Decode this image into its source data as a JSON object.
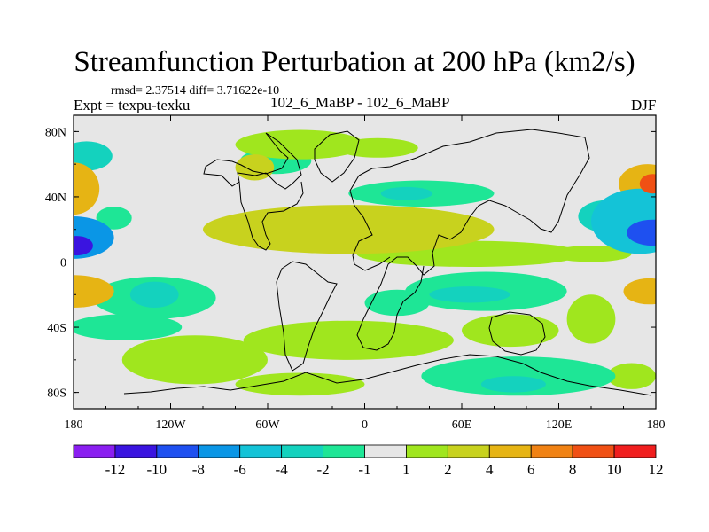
{
  "chart_data": {
    "type": "heatmap",
    "title": "Streamfunction Perturbation at 200 hPa (km2/s)",
    "stats_line": "rmsd= 2.37514  diff= 3.71622e-10",
    "left_label": "Expt = texpu-texku",
    "center_label": "102_6_MaBP - 102_6_MaBP",
    "right_label": "DJF",
    "xlim": [
      -180,
      180
    ],
    "ylim": [
      -90,
      90
    ],
    "x_ticks": [
      {
        "value": -180,
        "label": "180"
      },
      {
        "value": -120,
        "label": "120W"
      },
      {
        "value": -60,
        "label": "60W"
      },
      {
        "value": 0,
        "label": "0"
      },
      {
        "value": 60,
        "label": "60E"
      },
      {
        "value": 120,
        "label": "120E"
      },
      {
        "value": 180,
        "label": "180"
      }
    ],
    "y_ticks": [
      {
        "value": 80,
        "label": "80N"
      },
      {
        "value": 40,
        "label": "40N"
      },
      {
        "value": 0,
        "label": "0"
      },
      {
        "value": -40,
        "label": "40S"
      },
      {
        "value": -80,
        "label": "80S"
      }
    ],
    "contour_levels": [
      -12,
      -10,
      -8,
      -6,
      -4,
      -2,
      -1,
      1,
      2,
      4,
      6,
      8,
      10,
      12
    ],
    "colorbar_colors": [
      "#8a1ef0",
      "#3a14e0",
      "#1e50f0",
      "#0a96e6",
      "#14c3d7",
      "#14d2be",
      "#1ee696",
      "#e6e6e6",
      "#a0e61e",
      "#c8d21e",
      "#e6b414",
      "#f08214",
      "#f05014",
      "#f01e1e"
    ],
    "background_color": "#e6e6e6",
    "features": [
      {
        "lon": -172,
        "lat": 65,
        "rx": 16,
        "ry": 9,
        "value": -2.5
      },
      {
        "lon": -55,
        "lat": 62,
        "rx": 22,
        "ry": 8,
        "value": -1.8
      },
      {
        "lon": -40,
        "lat": 72,
        "rx": 40,
        "ry": 9,
        "value": 1.8
      },
      {
        "lon": -68,
        "lat": 58,
        "rx": 12,
        "ry": 8,
        "value": 3.2
      },
      {
        "lon": 8,
        "lat": 70,
        "rx": 25,
        "ry": 6,
        "value": 1.7
      },
      {
        "lon": 35,
        "lat": 42,
        "rx": 45,
        "ry": 8,
        "value": -1.7
      },
      {
        "lon": 26,
        "lat": 42,
        "rx": 16,
        "ry": 4,
        "value": -2.8
      },
      {
        "lon": -180,
        "lat": 45,
        "rx": 16,
        "ry": 16,
        "value": 5.0
      },
      {
        "lon": -180,
        "lat": 15,
        "rx": 25,
        "ry": 13,
        "value": -7.0
      },
      {
        "lon": -178,
        "lat": 10,
        "rx": 10,
        "ry": 6,
        "value": -10.5
      },
      {
        "lon": -155,
        "lat": 27,
        "rx": 11,
        "ry": 7,
        "value": -1.8
      },
      {
        "lon": -180,
        "lat": -18,
        "rx": 25,
        "ry": 10,
        "value": 4.5
      },
      {
        "lon": -130,
        "lat": -20,
        "rx": 15,
        "ry": 8,
        "value": -2.5
      },
      {
        "lon": -130,
        "lat": -22,
        "rx": 38,
        "ry": 13,
        "value": -1.6
      },
      {
        "lon": -148,
        "lat": -40,
        "rx": 35,
        "ry": 8,
        "value": -1.5
      },
      {
        "lon": -10,
        "lat": 20,
        "rx": 90,
        "ry": 15,
        "value": 3.3
      },
      {
        "lon": 65,
        "lat": 5,
        "rx": 70,
        "ry": 8,
        "value": 1.7
      },
      {
        "lon": 75,
        "lat": -18,
        "rx": 50,
        "ry": 12,
        "value": -1.7
      },
      {
        "lon": 65,
        "lat": -20,
        "rx": 25,
        "ry": 5,
        "value": -2.8
      },
      {
        "lon": 20,
        "lat": -25,
        "rx": 20,
        "ry": 8,
        "value": -1.5
      },
      {
        "lon": -10,
        "lat": -48,
        "rx": 65,
        "ry": 12,
        "value": 1.8
      },
      {
        "lon": -105,
        "lat": -60,
        "rx": 45,
        "ry": 15,
        "value": 1.7
      },
      {
        "lon": -40,
        "lat": -75,
        "rx": 40,
        "ry": 7,
        "value": 1.5
      },
      {
        "lon": 90,
        "lat": -42,
        "rx": 30,
        "ry": 10,
        "value": 1.6
      },
      {
        "lon": 95,
        "lat": -70,
        "rx": 60,
        "ry": 12,
        "value": -1.8
      },
      {
        "lon": 92,
        "lat": -75,
        "rx": 20,
        "ry": 5,
        "value": -2.6
      },
      {
        "lon": 165,
        "lat": -70,
        "rx": 15,
        "ry": 8,
        "value": 1.5
      },
      {
        "lon": 170,
        "lat": 25,
        "rx": 30,
        "ry": 20,
        "value": -5.0
      },
      {
        "lon": 178,
        "lat": 18,
        "rx": 16,
        "ry": 8,
        "value": -10.0
      },
      {
        "lon": 150,
        "lat": 28,
        "rx": 18,
        "ry": 10,
        "value": -3.5
      },
      {
        "lon": 175,
        "lat": 48,
        "rx": 18,
        "ry": 12,
        "value": 4.5
      },
      {
        "lon": 178,
        "lat": 48,
        "rx": 8,
        "ry": 6,
        "value": 8.5
      },
      {
        "lon": 176,
        "lat": -18,
        "rx": 16,
        "ry": 8,
        "value": 5.0
      },
      {
        "lon": 140,
        "lat": 5,
        "rx": 25,
        "ry": 5,
        "value": 1.5
      },
      {
        "lon": 140,
        "lat": -35,
        "rx": 15,
        "ry": 15,
        "value": 1.5
      }
    ]
  }
}
